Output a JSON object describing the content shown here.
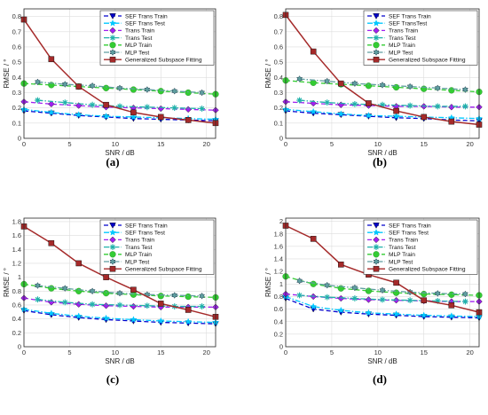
{
  "chart_data": [
    {
      "type": "line",
      "panel_label": "(a)",
      "xlabel": "SNR / dB",
      "ylabel": "RMSE / °",
      "xlim": [
        0,
        21
      ],
      "ylim": [
        0,
        0.85
      ],
      "xticks": [
        0,
        5,
        10,
        15,
        20
      ],
      "yticks": [
        0,
        0.1,
        0.2,
        0.3,
        0.4,
        0.5,
        0.6,
        0.7,
        0.8
      ],
      "ytick_labels": [
        "0",
        "0.1",
        "0.2",
        "0.3",
        "0.4",
        "0.5",
        "0.6",
        "0.7",
        "0.8"
      ],
      "grid": true,
      "legend_position": "top-right",
      "series": [
        {
          "name": "SEF Trans Train",
          "color": "#0000cc",
          "marker": "triangle-down",
          "dash": "dashed",
          "x": [
            0,
            3,
            6,
            9,
            12,
            15,
            18,
            21
          ],
          "y": [
            0.18,
            0.165,
            0.15,
            0.14,
            0.13,
            0.125,
            0.12,
            0.115
          ]
        },
        {
          "name": "SEF Trans Test",
          "color": "#00c8ff",
          "marker": "star",
          "dash": "dashdot",
          "x": [
            0,
            3,
            6,
            9,
            12,
            15,
            18,
            21
          ],
          "y": [
            0.19,
            0.17,
            0.155,
            0.145,
            0.14,
            0.135,
            0.13,
            0.125
          ]
        },
        {
          "name": "Trans Train",
          "color": "#a020f0",
          "marker": "diamond",
          "dash": "dashed",
          "x": [
            0,
            3,
            6,
            9,
            12,
            15,
            18,
            21
          ],
          "y": [
            0.24,
            0.225,
            0.215,
            0.205,
            0.2,
            0.195,
            0.19,
            0.185
          ]
        },
        {
          "name": "Trans Test",
          "color": "#20b2aa",
          "marker": "asterisk",
          "dash": "dashdot",
          "x": [
            1.5,
            4.5,
            7.5,
            10.5,
            13.5,
            16.5,
            19.5
          ],
          "y": [
            0.25,
            0.235,
            0.22,
            0.21,
            0.205,
            0.2,
            0.195
          ]
        },
        {
          "name": "MLP Train",
          "color": "#33cc33",
          "marker": "circle",
          "dash": "dashed",
          "x": [
            0,
            3,
            6,
            9,
            12,
            15,
            18,
            21
          ],
          "y": [
            0.36,
            0.35,
            0.34,
            0.33,
            0.32,
            0.31,
            0.3,
            0.29
          ]
        },
        {
          "name": "MLP Test",
          "color": "#5f9ea0",
          "marker": "hexagram",
          "dash": "dashdot",
          "x": [
            1.5,
            4.5,
            7.5,
            10.5,
            13.5,
            16.5,
            19.5
          ],
          "y": [
            0.37,
            0.355,
            0.345,
            0.33,
            0.32,
            0.31,
            0.3
          ]
        },
        {
          "name": "Generalized Subspace Fitting",
          "color": "#a52a2a",
          "marker": "square",
          "dash": "solid",
          "x": [
            0,
            3,
            6,
            9,
            12,
            15,
            18,
            21
          ],
          "y": [
            0.78,
            0.52,
            0.34,
            0.22,
            0.17,
            0.14,
            0.12,
            0.1
          ]
        }
      ]
    },
    {
      "type": "line",
      "panel_label": "(b)",
      "xlabel": "SNR / dB",
      "ylabel": "RMSE / °",
      "xlim": [
        0,
        21
      ],
      "ylim": [
        0,
        0.85
      ],
      "xticks": [
        0,
        5,
        10,
        15,
        20
      ],
      "yticks": [
        0,
        0.1,
        0.2,
        0.3,
        0.4,
        0.5,
        0.6,
        0.7,
        0.8
      ],
      "ytick_labels": [
        "0",
        "0.1",
        "0.2",
        "0.3",
        "0.4",
        "0.5",
        "0.6",
        "0.7",
        "0.8"
      ],
      "grid": true,
      "legend_position": "top-right",
      "series": [
        {
          "name": "SEF Trans Train",
          "color": "#0000cc",
          "marker": "triangle-down",
          "dash": "dashed",
          "x": [
            0,
            3,
            6,
            9,
            12,
            15,
            18,
            21
          ],
          "y": [
            0.18,
            0.165,
            0.155,
            0.145,
            0.135,
            0.13,
            0.12,
            0.115
          ]
        },
        {
          "name": "SEF TransTest",
          "color": "#00c8ff",
          "marker": "star",
          "dash": "dashdot",
          "x": [
            0,
            3,
            6,
            9,
            12,
            15,
            18,
            21
          ],
          "y": [
            0.19,
            0.175,
            0.16,
            0.15,
            0.145,
            0.14,
            0.135,
            0.13
          ]
        },
        {
          "name": "Trans Train",
          "color": "#a020f0",
          "marker": "diamond",
          "dash": "dashed",
          "x": [
            0,
            3,
            6,
            9,
            12,
            15,
            18,
            21
          ],
          "y": [
            0.24,
            0.23,
            0.22,
            0.215,
            0.21,
            0.21,
            0.205,
            0.205
          ]
        },
        {
          "name": "Trans Test",
          "color": "#20b2aa",
          "marker": "asterisk",
          "dash": "dashdot",
          "x": [
            1.5,
            4.5,
            7.5,
            10.5,
            13.5,
            16.5,
            19.5
          ],
          "y": [
            0.25,
            0.235,
            0.225,
            0.22,
            0.215,
            0.21,
            0.21
          ]
        },
        {
          "name": "MLP Train",
          "color": "#33cc33",
          "marker": "circle",
          "dash": "dashed",
          "x": [
            0,
            3,
            6,
            9,
            12,
            15,
            18,
            21
          ],
          "y": [
            0.38,
            0.365,
            0.355,
            0.345,
            0.335,
            0.325,
            0.315,
            0.305
          ]
        },
        {
          "name": "MLP Test",
          "color": "#5f9ea0",
          "marker": "hexagram",
          "dash": "dashdot",
          "x": [
            1.5,
            4.5,
            7.5,
            10.5,
            13.5,
            16.5,
            19.5
          ],
          "y": [
            0.39,
            0.375,
            0.36,
            0.35,
            0.34,
            0.33,
            0.32
          ]
        },
        {
          "name": "Generalized Subspace Fitting",
          "color": "#a52a2a",
          "marker": "square",
          "dash": "solid",
          "x": [
            0,
            3,
            6,
            9,
            12,
            15,
            18,
            21
          ],
          "y": [
            0.81,
            0.57,
            0.36,
            0.23,
            0.18,
            0.14,
            0.11,
            0.09
          ]
        }
      ]
    },
    {
      "type": "line",
      "panel_label": "(c)",
      "xlabel": "SNR / dB",
      "ylabel": "RMSE / °",
      "xlim": [
        0,
        21
      ],
      "ylim": [
        0,
        1.85
      ],
      "xticks": [
        0,
        5,
        10,
        15,
        20
      ],
      "yticks": [
        0,
        0.2,
        0.4,
        0.6,
        0.8,
        1,
        1.2,
        1.4,
        1.6,
        1.8
      ],
      "ytick_labels": [
        "0",
        "0.2",
        "0.4",
        "0.6",
        "0.8",
        "1",
        "1.2",
        "1.4",
        "1.6",
        "1.8"
      ],
      "grid": true,
      "legend_position": "top-right",
      "series": [
        {
          "name": "SEF Trans Train",
          "color": "#0000cc",
          "marker": "triangle-down",
          "dash": "dashed",
          "x": [
            0,
            3,
            6,
            9,
            12,
            15,
            18,
            21
          ],
          "y": [
            0.52,
            0.46,
            0.42,
            0.39,
            0.37,
            0.35,
            0.34,
            0.33
          ]
        },
        {
          "name": "SEF Trans Test",
          "color": "#00c8ff",
          "marker": "star",
          "dash": "dashdot",
          "x": [
            0,
            3,
            6,
            9,
            12,
            15,
            18,
            21
          ],
          "y": [
            0.54,
            0.48,
            0.44,
            0.41,
            0.39,
            0.37,
            0.36,
            0.35
          ]
        },
        {
          "name": "Trans Train",
          "color": "#a020f0",
          "marker": "diamond",
          "dash": "dashed",
          "x": [
            0,
            3,
            6,
            9,
            12,
            15,
            18,
            21
          ],
          "y": [
            0.7,
            0.64,
            0.61,
            0.59,
            0.58,
            0.57,
            0.57,
            0.57
          ]
        },
        {
          "name": "Trans Test",
          "color": "#20b2aa",
          "marker": "asterisk",
          "dash": "dashdot",
          "x": [
            1.5,
            4.5,
            7.5,
            10.5,
            13.5,
            16.5,
            19.5
          ],
          "y": [
            0.68,
            0.64,
            0.61,
            0.6,
            0.59,
            0.58,
            0.58
          ]
        },
        {
          "name": "MLP Train",
          "color": "#33cc33",
          "marker": "circle",
          "dash": "dashed",
          "x": [
            0,
            3,
            6,
            9,
            12,
            15,
            18,
            21
          ],
          "y": [
            0.9,
            0.84,
            0.8,
            0.77,
            0.75,
            0.73,
            0.72,
            0.71
          ]
        },
        {
          "name": "MLP Test",
          "color": "#5f9ea0",
          "marker": "hexagram",
          "dash": "dashdot",
          "x": [
            1.5,
            4.5,
            7.5,
            10.5,
            13.5,
            16.5,
            19.5
          ],
          "y": [
            0.88,
            0.84,
            0.8,
            0.77,
            0.75,
            0.74,
            0.73
          ]
        },
        {
          "name": "Generalized Subspace Fitting",
          "color": "#a52a2a",
          "marker": "square",
          "dash": "solid",
          "x": [
            0,
            3,
            6,
            9,
            12,
            15,
            18,
            21
          ],
          "y": [
            1.73,
            1.49,
            1.2,
            1.0,
            0.82,
            0.62,
            0.53,
            0.43
          ]
        }
      ]
    },
    {
      "type": "line",
      "panel_label": "(d)",
      "xlabel": "SNR / dB",
      "ylabel": "RMSE / °",
      "xlim": [
        0,
        21
      ],
      "ylim": [
        0,
        2.05
      ],
      "xticks": [
        0,
        5,
        10,
        15,
        20
      ],
      "yticks": [
        0,
        0.2,
        0.4,
        0.6,
        0.8,
        1,
        1.2,
        1.4,
        1.6,
        1.8,
        2
      ],
      "ytick_labels": [
        "0",
        "0.2",
        "0.4",
        "0.6",
        "0.8",
        "1",
        "1.2",
        "1.4",
        "1.6",
        "1.8",
        "2"
      ],
      "grid": true,
      "legend_position": "top-right",
      "series": [
        {
          "name": "SEF Trans Train",
          "color": "#0000cc",
          "marker": "triangle-down",
          "dash": "dashed",
          "x": [
            0,
            3,
            6,
            9,
            12,
            15,
            18,
            21
          ],
          "y": [
            0.77,
            0.6,
            0.55,
            0.52,
            0.5,
            0.48,
            0.47,
            0.46
          ]
        },
        {
          "name": "SEF Trans Test",
          "color": "#00c8ff",
          "marker": "star",
          "dash": "dashdot",
          "x": [
            0,
            3,
            6,
            9,
            12,
            15,
            18,
            21
          ],
          "y": [
            0.8,
            0.64,
            0.58,
            0.54,
            0.52,
            0.5,
            0.49,
            0.48
          ]
        },
        {
          "name": "Trans Train",
          "color": "#a020f0",
          "marker": "diamond",
          "dash": "dashed",
          "x": [
            0,
            3,
            6,
            9,
            12,
            15,
            18,
            21
          ],
          "y": [
            0.84,
            0.8,
            0.77,
            0.75,
            0.74,
            0.73,
            0.72,
            0.72
          ]
        },
        {
          "name": "Trans Test",
          "color": "#20b2aa",
          "marker": "asterisk",
          "dash": "dashdot",
          "x": [
            1.5,
            4.5,
            7.5,
            10.5,
            13.5,
            16.5,
            19.5
          ],
          "y": [
            0.82,
            0.79,
            0.77,
            0.75,
            0.74,
            0.73,
            0.72
          ]
        },
        {
          "name": "MLP Train",
          "color": "#33cc33",
          "marker": "circle",
          "dash": "dashed",
          "x": [
            0,
            3,
            6,
            9,
            12,
            15,
            18,
            21
          ],
          "y": [
            1.12,
            1.0,
            0.93,
            0.89,
            0.86,
            0.84,
            0.83,
            0.82
          ]
        },
        {
          "name": "MLP Test",
          "color": "#5f9ea0",
          "marker": "hexagram",
          "dash": "dashdot",
          "x": [
            1.5,
            4.5,
            7.5,
            10.5,
            13.5,
            16.5,
            19.5
          ],
          "y": [
            1.05,
            0.98,
            0.94,
            0.9,
            0.87,
            0.85,
            0.84
          ]
        },
        {
          "name": "Generalized Subspace Fitting",
          "color": "#a52a2a",
          "marker": "square",
          "dash": "solid",
          "x": [
            0,
            3,
            6,
            9,
            12,
            15,
            18,
            21
          ],
          "y": [
            1.93,
            1.72,
            1.31,
            1.15,
            1.02,
            0.74,
            0.66,
            0.55
          ]
        }
      ]
    }
  ]
}
